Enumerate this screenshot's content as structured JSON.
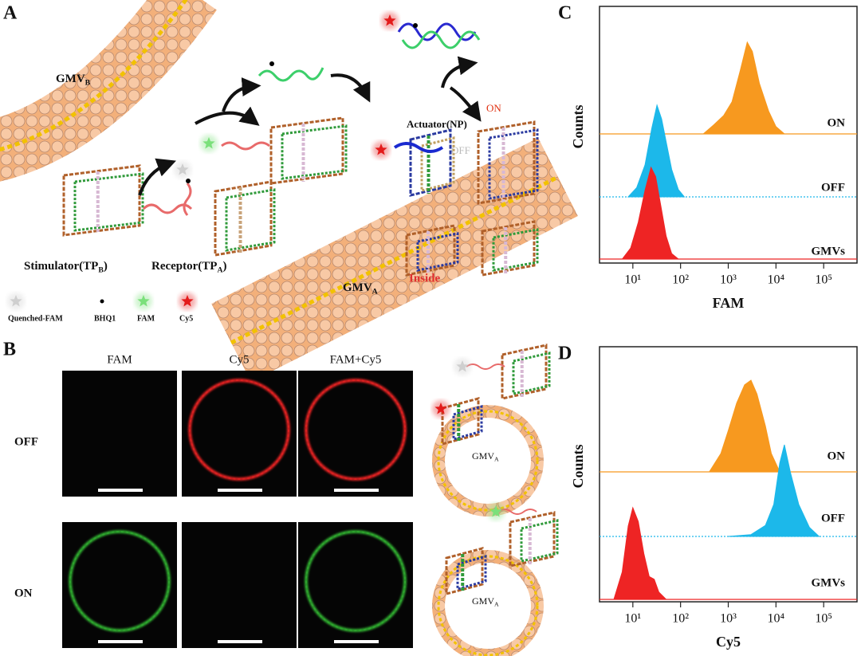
{
  "panels": {
    "A": {
      "letter": "A",
      "gmv_b": {
        "main": "GMV",
        "sub": "B"
      },
      "gmv_a": {
        "main": "GMV",
        "sub": "A"
      },
      "stimulator": {
        "main": "Stimulator(TP",
        "sub": "B",
        "tail": ")"
      },
      "receptor": {
        "main": "Receptor(TP",
        "sub": "A",
        "tail": ")"
      },
      "actuator": "Actuator(NP)",
      "on": "ON",
      "off": "OFF",
      "inside": "Inside",
      "legend": [
        "Quenched-FAM",
        "BHQ1",
        "FAM",
        "Cy5"
      ]
    },
    "B": {
      "letter": "B",
      "columns": [
        "FAM",
        "Cy5",
        "FAM+Cy5"
      ],
      "rows": [
        "OFF",
        "ON"
      ],
      "vesicle_labels": [
        {
          "main": "GMV",
          "sub": "A"
        },
        {
          "main": "GMV",
          "sub": "A"
        }
      ]
    },
    "C": {
      "letter": "C",
      "ylabel": "Counts",
      "xlabel": "FAM",
      "log": true,
      "xlim": [
        2,
        500000
      ],
      "xticks": [
        {
          "value": 10,
          "label": "10¹"
        },
        {
          "value": 100,
          "label": "10²"
        },
        {
          "value": 1000,
          "label": "10³"
        },
        {
          "value": 10000,
          "label": "10⁴"
        },
        {
          "value": 100000,
          "label": "10⁵"
        }
      ],
      "series": [
        {
          "name": "ON",
          "color": "#f7991f",
          "x": [
            300,
            500,
            800,
            1200,
            1800,
            2500,
            3200,
            4500,
            7000,
            10000,
            15000
          ],
          "values": [
            0,
            10,
            20,
            35,
            70,
            100,
            90,
            55,
            25,
            8,
            0
          ]
        },
        {
          "name": "OFF",
          "color": "#1cb8ea",
          "x": [
            8,
            12,
            18,
            25,
            32,
            40,
            50,
            65,
            90,
            120
          ],
          "values": [
            0,
            10,
            35,
            75,
            100,
            85,
            60,
            30,
            8,
            0
          ]
        },
        {
          "name": "GMVs",
          "color": "#ee2424",
          "x": [
            6,
            9,
            13,
            18,
            24,
            30,
            38,
            50,
            65,
            90
          ],
          "values": [
            0,
            12,
            40,
            75,
            100,
            90,
            60,
            25,
            6,
            0
          ]
        }
      ]
    },
    "D": {
      "letter": "D",
      "ylabel": "Counts",
      "xlabel": "Cy5",
      "log": true,
      "xlim": [
        2,
        500000
      ],
      "xticks": [
        {
          "value": 10,
          "label": "10¹"
        },
        {
          "value": 100,
          "label": "10²"
        },
        {
          "value": 1000,
          "label": "10³"
        },
        {
          "value": 10000,
          "label": "10⁴"
        },
        {
          "value": 100000,
          "label": "10⁵"
        }
      ],
      "series": [
        {
          "name": "ON",
          "color": "#f7991f",
          "x": [
            400,
            700,
            1000,
            1500,
            2200,
            3000,
            4000,
            6000,
            8000,
            12000
          ],
          "values": [
            0,
            20,
            45,
            75,
            95,
            100,
            85,
            50,
            20,
            0
          ]
        },
        {
          "name": "OFF",
          "color": "#1cb8ea",
          "x": [
            1000,
            3000,
            6000,
            9000,
            12000,
            15000,
            20000,
            30000,
            50000,
            80000
          ],
          "values": [
            0,
            2,
            12,
            35,
            80,
            100,
            70,
            35,
            10,
            0
          ]
        },
        {
          "name": "GMVs",
          "color": "#ee2424",
          "x": [
            4,
            6,
            8,
            10,
            13,
            17,
            22,
            28,
            35,
            50
          ],
          "values": [
            0,
            30,
            80,
            100,
            85,
            50,
            25,
            22,
            8,
            0
          ]
        }
      ]
    }
  }
}
